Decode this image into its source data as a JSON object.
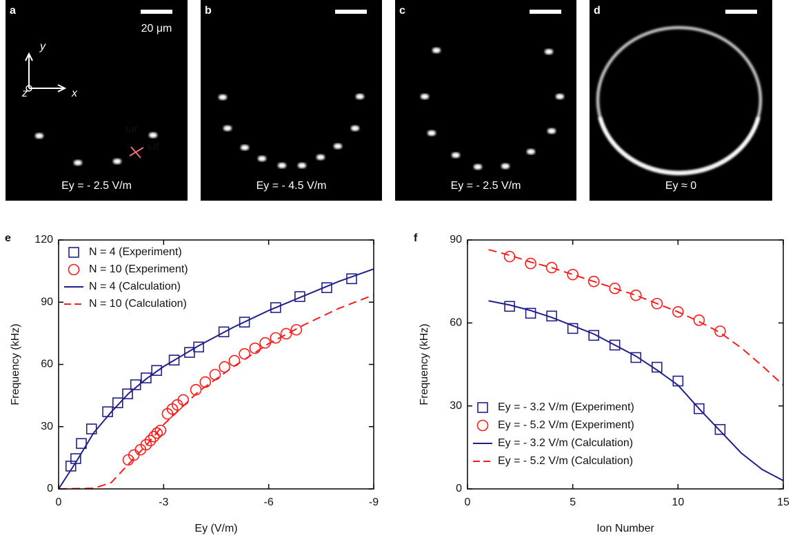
{
  "panels": [
    {
      "letter": "a",
      "scale_label": "20 μm",
      "field_label": "Ey = - 2.5 V/m",
      "axis_labels": [
        "y",
        "x",
        "z"
      ],
      "mode_labels": [
        "ωr",
        "ωt"
      ]
    },
    {
      "letter": "b",
      "field_label": "Ey = - 4.5 V/m"
    },
    {
      "letter": "c",
      "field_label": "Ey = - 2.5 V/m"
    },
    {
      "letter": "d",
      "field_label": "Ey ≈ 0"
    }
  ],
  "chart_data": [
    {
      "type": "line",
      "panel_label": "e",
      "xlabel": "Ey (V/m)",
      "ylabel": "Frequency (kHz)",
      "xlim": [
        0,
        -9
      ],
      "xticks": [
        0,
        -3,
        -6,
        -9
      ],
      "ylim": [
        0,
        120
      ],
      "yticks": [
        0,
        30,
        60,
        90,
        120
      ],
      "legend": "upper left",
      "series": [
        {
          "name": "N = 4   (Experiment)",
          "color": "#1f1f8c",
          "marker": "square",
          "line": "none",
          "x": [
            -0.35,
            -0.49,
            -0.65,
            -0.94,
            -1.4,
            -1.69,
            -1.97,
            -2.2,
            -2.5,
            -2.8,
            -3.3,
            -3.74,
            -4.0,
            -4.72,
            -5.31,
            -6.2,
            -6.89,
            -7.66,
            -8.37
          ],
          "values": [
            11,
            14.6,
            21.9,
            28.9,
            37.2,
            41.5,
            45.8,
            50.2,
            53.5,
            57.1,
            62.1,
            65.8,
            68.4,
            75.7,
            80.4,
            87.4,
            92.7,
            97,
            101.3
          ]
        },
        {
          "name": "N = 10 (Experiment)",
          "color": "#ff1a1a",
          "marker": "circle",
          "line": "none",
          "x": [
            -1.99,
            -2.15,
            -2.34,
            -2.5,
            -2.62,
            -2.72,
            -2.81,
            -2.91,
            -3.11,
            -3.25,
            -3.39,
            -3.56,
            -3.92,
            -4.19,
            -4.47,
            -4.74,
            -5.02,
            -5.31,
            -5.61,
            -5.9,
            -6.2,
            -6.5,
            -6.79
          ],
          "values": [
            14,
            16.3,
            18.9,
            21.3,
            23.3,
            25.2,
            26.9,
            28.2,
            36.2,
            38.5,
            40.5,
            42.9,
            47.8,
            51.5,
            55.1,
            58.8,
            61.8,
            65.1,
            67.8,
            70.4,
            72.8,
            74.8,
            76.7
          ]
        },
        {
          "name": "N = 4   (Calculation)",
          "color": "#1f1f8c",
          "marker": "none",
          "line": "solid",
          "x": [
            0,
            -0.5,
            -1,
            -1.5,
            -2,
            -2.5,
            -3,
            -4,
            -5,
            -6,
            -7,
            -8,
            -9
          ],
          "values": [
            0,
            13,
            27,
            37,
            46,
            53,
            59,
            69,
            78,
            86,
            93,
            100,
            106
          ]
        },
        {
          "name": "N = 10 (Calculation)",
          "color": "#ff1a1a",
          "marker": "none",
          "line": "dashed",
          "x": [
            0,
            -1,
            -1.5,
            -2,
            -2.5,
            -3,
            -3.5,
            -4,
            -5,
            -6,
            -7,
            -8,
            -9
          ],
          "values": [
            0,
            0.3,
            3,
            12,
            21,
            31,
            39,
            47,
            59,
            70,
            79,
            87,
            93.5
          ]
        }
      ]
    },
    {
      "type": "line",
      "panel_label": "f",
      "xlabel": "Ion Number",
      "ylabel": "Frequency (kHz)",
      "xlim": [
        0,
        15
      ],
      "xticks": [
        0,
        5,
        10,
        15
      ],
      "ylim": [
        0,
        90
      ],
      "yticks": [
        0,
        30,
        60,
        90
      ],
      "legend": "lower left",
      "series": [
        {
          "name": "Ey = - 3.2 V/m (Experiment)",
          "color": "#1f1f8c",
          "marker": "square",
          "line": "none",
          "x": [
            2,
            3,
            4,
            5,
            6,
            7,
            8,
            9,
            10,
            11,
            12
          ],
          "values": [
            66,
            63.5,
            62.5,
            58,
            55.5,
            52,
            47.5,
            44,
            39,
            29,
            21.5
          ]
        },
        {
          "name": "Ey = - 5.2 V/m (Experiment)",
          "color": "#ff1a1a",
          "marker": "circle",
          "line": "none",
          "x": [
            2,
            3,
            4,
            5,
            6,
            7,
            8,
            9,
            10,
            11,
            12
          ],
          "values": [
            84,
            81.5,
            80,
            77.5,
            75,
            72.5,
            70,
            67,
            64,
            61,
            57
          ]
        },
        {
          "name": "Ey = - 3.2 V/m (Calculation)",
          "color": "#1f1f8c",
          "marker": "none",
          "line": "solid",
          "x": [
            1,
            2,
            3,
            4,
            5,
            6,
            7,
            8,
            9,
            10,
            11,
            12,
            13,
            14,
            15
          ],
          "values": [
            68,
            66.5,
            64.5,
            62,
            59,
            56,
            52,
            48,
            43,
            37.5,
            29,
            21,
            13,
            7,
            3
          ]
        },
        {
          "name": "Ey = - 5.2 V/m (Calculation)",
          "color": "#ff1a1a",
          "marker": "none",
          "line": "dashed",
          "x": [
            1,
            2,
            3,
            4,
            5,
            6,
            7,
            8,
            9,
            10,
            11,
            12,
            13,
            14,
            15
          ],
          "values": [
            86.5,
            84.5,
            82,
            80,
            77.5,
            75,
            72.5,
            70,
            67,
            64,
            60.5,
            56.5,
            51,
            44.5,
            37.5
          ]
        }
      ]
    }
  ]
}
